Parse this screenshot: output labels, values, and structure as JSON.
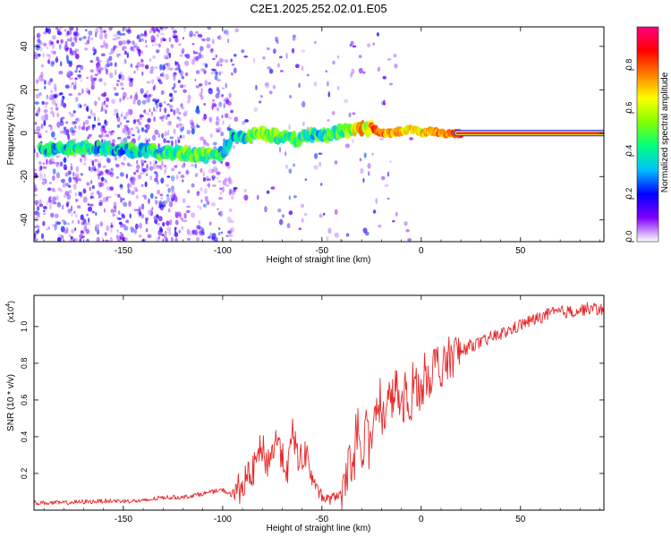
{
  "title": "C2E1.2025.252.02.01.E05",
  "chart_data": [
    {
      "type": "heatmap",
      "xlabel": "Height of straight line (km)",
      "ylabel": "Frequency (Hz)",
      "xlim": [
        -195,
        92
      ],
      "ylim": [
        -50,
        49
      ],
      "xticks": [
        -150,
        -100,
        -50,
        0,
        50
      ],
      "yticks": [
        -40,
        -20,
        0,
        20,
        40
      ],
      "colorbar": {
        "label": "Normalized spectral amplitude",
        "range": [
          0,
          1
        ],
        "ticks": [
          "0.0",
          "0.2",
          "0.4",
          "0.6",
          "0.8"
        ],
        "colormap": [
          "#ffffff",
          "#8000ff",
          "#0000ff",
          "#00c0ff",
          "#00ff80",
          "#80ff00",
          "#ffff00",
          "#ff8000",
          "#ff0000",
          "#ff0080"
        ]
      },
      "ridge": {
        "x": [
          -190,
          -180,
          -170,
          -160,
          -150,
          -140,
          -130,
          -120,
          -110,
          -105,
          -100,
          -97,
          -95,
          -90,
          -85,
          -80,
          -75,
          -70,
          -65,
          -60,
          -55,
          -50,
          -45,
          -40,
          -35,
          -32,
          -30,
          -28,
          -25,
          -22,
          -20,
          -15,
          -10,
          -5,
          0,
          5,
          10,
          15,
          20,
          30,
          40,
          50,
          60,
          70,
          80,
          90
        ],
        "y": [
          -8,
          -7,
          -6,
          -7,
          -8,
          -8,
          -9,
          -9,
          -10,
          -11,
          -9,
          -5,
          -2,
          -2,
          -1,
          0,
          -1,
          -2,
          -3,
          -2,
          -1,
          -1,
          0,
          1,
          1,
          3,
          2,
          1,
          3,
          1,
          0,
          0,
          1,
          2,
          0,
          1,
          0,
          0,
          0,
          0,
          0,
          0,
          0,
          0,
          0,
          0
        ],
        "amplitude": [
          0.45,
          0.45,
          0.5,
          0.4,
          0.45,
          0.45,
          0.5,
          0.55,
          0.6,
          0.55,
          0.45,
          0.4,
          0.45,
          0.45,
          0.55,
          0.7,
          0.6,
          0.5,
          0.55,
          0.5,
          0.5,
          0.5,
          0.55,
          0.6,
          0.65,
          0.9,
          0.85,
          0.7,
          0.85,
          0.85,
          0.8,
          0.75,
          0.7,
          0.65,
          0.7,
          0.75,
          0.75,
          0.8,
          0.85,
          0.95,
          0.95,
          0.95,
          0.95,
          0.95,
          0.95,
          0.95
        ]
      }
    },
    {
      "type": "line",
      "xlabel": "Height of straight line (km)",
      "ylabel": "SNR (10 * v/v)",
      "scale_label": "(x10",
      "scale_exp": "4",
      "xlim": [
        -195,
        92
      ],
      "ylim": [
        0,
        1.17
      ],
      "xticks": [
        -150,
        -100,
        -50,
        0,
        50
      ],
      "yticks": [
        "0.2",
        "0.4",
        "0.6",
        "0.8",
        "1.0"
      ],
      "series": [
        {
          "color": "#e8282a",
          "x": [
            -195,
            -180,
            -160,
            -140,
            -130,
            -120,
            -110,
            -100,
            -95,
            -90,
            -85,
            -82,
            -80,
            -78,
            -75,
            -72,
            -70,
            -67,
            -65,
            -62,
            -60,
            -58,
            -55,
            -52,
            -50,
            -48,
            -45,
            -42,
            -40,
            -38,
            -36,
            -34,
            -32,
            -30,
            -28,
            -26,
            -24,
            -22,
            -20,
            -18,
            -16,
            -14,
            -12,
            -10,
            -8,
            -6,
            -4,
            -2,
            0,
            2,
            4,
            6,
            8,
            10,
            12,
            15,
            20,
            25,
            30,
            35,
            40,
            45,
            50,
            55,
            60,
            65,
            70,
            75,
            80,
            85,
            92
          ],
          "y": [
            0.04,
            0.04,
            0.05,
            0.05,
            0.07,
            0.07,
            0.09,
            0.11,
            0.08,
            0.14,
            0.2,
            0.3,
            0.35,
            0.25,
            0.32,
            0.4,
            0.28,
            0.22,
            0.42,
            0.3,
            0.26,
            0.32,
            0.18,
            0.1,
            0.07,
            0.06,
            0.06,
            0.09,
            0.07,
            0.12,
            0.33,
            0.2,
            0.38,
            0.2,
            0.55,
            0.3,
            0.46,
            0.58,
            0.44,
            0.56,
            0.6,
            0.62,
            0.68,
            0.5,
            0.66,
            0.48,
            0.72,
            0.68,
            0.62,
            0.76,
            0.72,
            0.78,
            0.82,
            0.7,
            0.8,
            0.84,
            0.86,
            0.9,
            0.91,
            0.94,
            0.96,
            0.98,
            1.01,
            1.03,
            1.05,
            1.07,
            1.08,
            1.08,
            1.09,
            1.1,
            1.09
          ]
        }
      ]
    }
  ]
}
